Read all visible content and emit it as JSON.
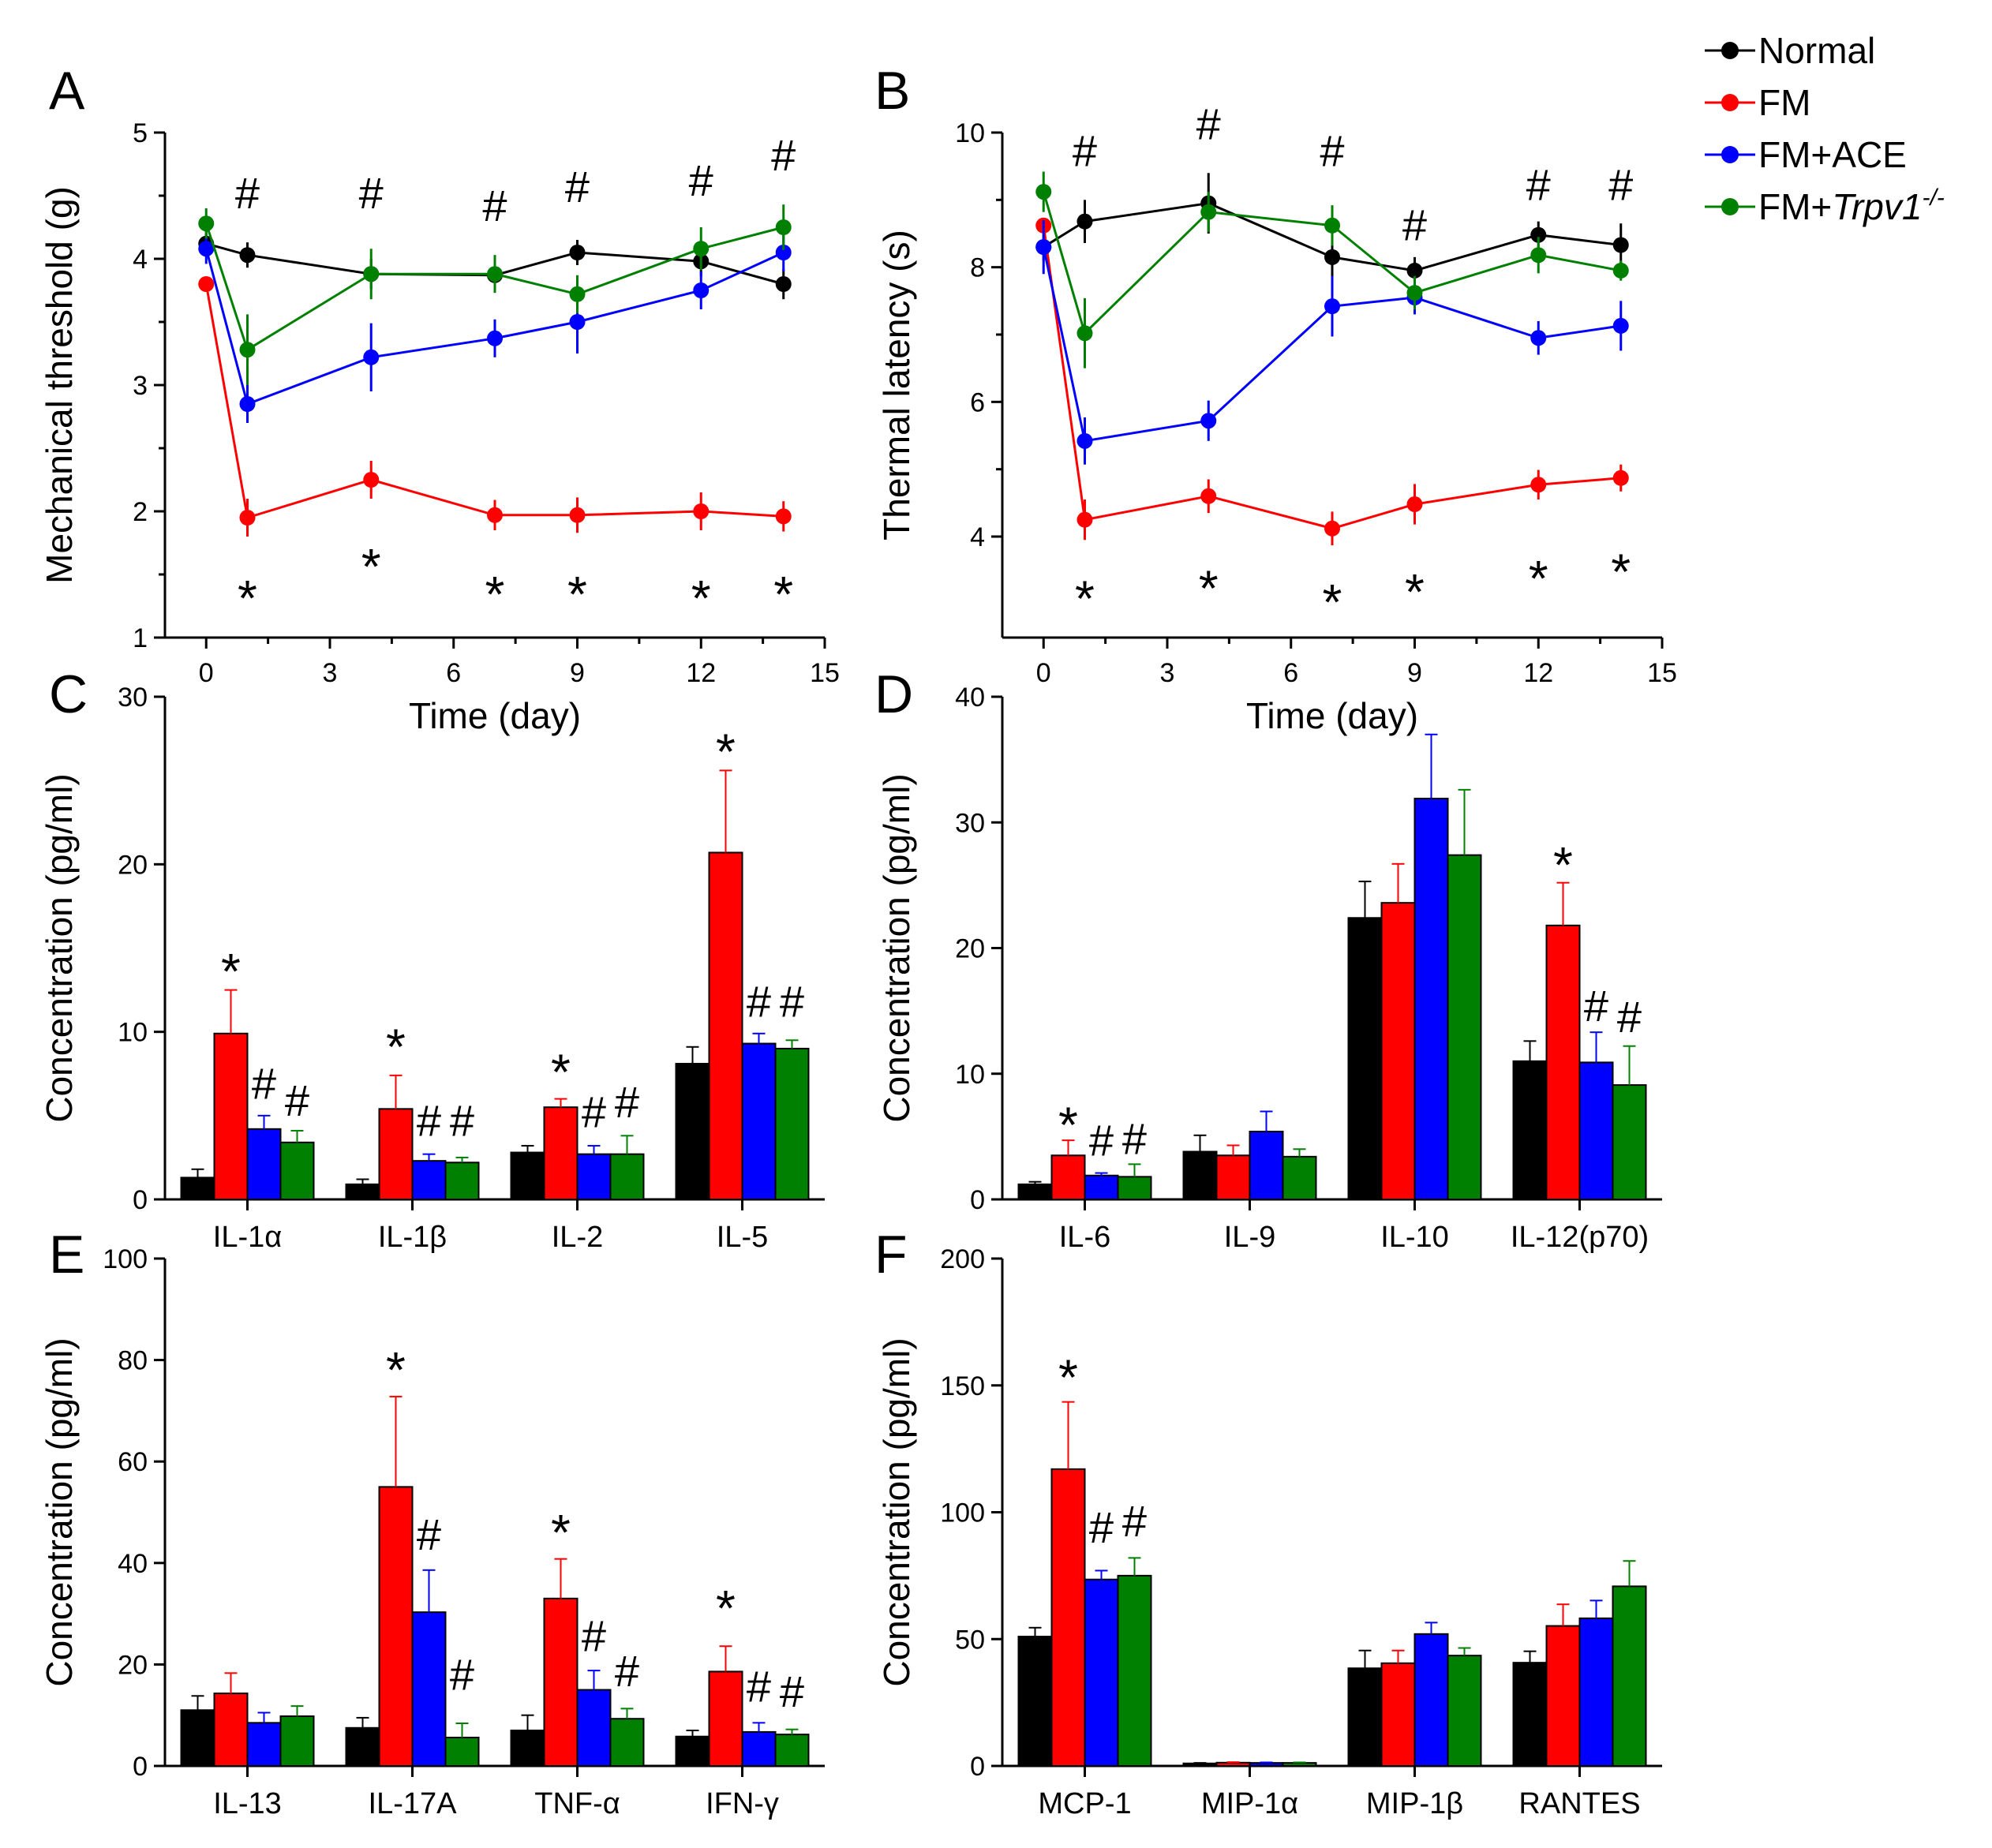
{
  "legend": {
    "items": [
      {
        "label": "Normal",
        "color": "#000000"
      },
      {
        "label": "FM",
        "color": "#ff0000"
      },
      {
        "label": "FM+ACE",
        "color": "#0000ff"
      },
      {
        "label": "FM+",
        "italic": "Trpv1",
        "sup": "-/-",
        "color": "#008000"
      }
    ]
  },
  "chart_data": [
    {
      "panel": "A",
      "type": "line",
      "xlabel": "Time (day)",
      "ylabel": "Mechanical threshold (g)",
      "xlim": [
        -1,
        15
      ],
      "ylim": [
        1,
        5
      ],
      "xticks": [
        0,
        3,
        6,
        9,
        12,
        15
      ],
      "yticks": [
        1,
        2,
        3,
        4,
        5
      ],
      "x": [
        0,
        1,
        4,
        7,
        9,
        12,
        14
      ],
      "series": [
        {
          "name": "Normal",
          "color": "#000000",
          "values": [
            4.12,
            4.03,
            3.88,
            3.87,
            4.05,
            3.98,
            3.8
          ],
          "errors": [
            0.1,
            0.1,
            0.12,
            0.1,
            0.1,
            0.12,
            0.12
          ]
        },
        {
          "name": "FM",
          "color": "#ff0000",
          "values": [
            3.8,
            1.95,
            2.25,
            1.97,
            1.97,
            2.0,
            1.96
          ],
          "errors": [
            0,
            0.15,
            0.15,
            0.12,
            0.14,
            0.15,
            0.12
          ]
        },
        {
          "name": "FM+ACE",
          "color": "#0000ff",
          "values": [
            4.08,
            2.85,
            3.22,
            3.37,
            3.5,
            3.75,
            4.05
          ],
          "errors": [
            0.12,
            0.15,
            0.27,
            0.15,
            0.25,
            0.15,
            0.15
          ]
        },
        {
          "name": "FM+Trpv1-/-",
          "color": "#008000",
          "values": [
            4.28,
            3.28,
            3.88,
            3.88,
            3.72,
            4.08,
            4.25
          ],
          "errors": [
            0.12,
            0.28,
            0.2,
            0.15,
            0.15,
            0.17,
            0.18
          ]
        }
      ],
      "annotations": [
        {
          "text": "#",
          "x": 1,
          "y": 4.4
        },
        {
          "text": "#",
          "x": 4,
          "y": 4.4
        },
        {
          "text": "#",
          "x": 7,
          "y": 4.3
        },
        {
          "text": "#",
          "x": 9,
          "y": 4.45
        },
        {
          "text": "#",
          "x": 12,
          "y": 4.5
        },
        {
          "text": "#",
          "x": 14,
          "y": 4.7
        },
        {
          "text": "*",
          "x": 1,
          "y": 1.35
        },
        {
          "text": "*",
          "x": 4,
          "y": 1.6
        },
        {
          "text": "*",
          "x": 7,
          "y": 1.38
        },
        {
          "text": "*",
          "x": 9,
          "y": 1.38
        },
        {
          "text": "*",
          "x": 12,
          "y": 1.35
        },
        {
          "text": "*",
          "x": 14,
          "y": 1.38
        }
      ]
    },
    {
      "panel": "B",
      "type": "line",
      "xlabel": "Time (day)",
      "ylabel": "Thermal latency (s)",
      "xlim": [
        -1,
        15
      ],
      "ylim": [
        2.5,
        10
      ],
      "xticks": [
        0,
        3,
        6,
        9,
        12,
        15
      ],
      "yticks": [
        4,
        6,
        8,
        10
      ],
      "x": [
        0,
        1,
        4,
        7,
        9,
        12,
        14
      ],
      "series": [
        {
          "name": "Normal",
          "color": "#000000",
          "values": [
            8.3,
            8.68,
            8.95,
            8.15,
            7.95,
            8.48,
            8.33
          ],
          "errors": [
            0.2,
            0.32,
            0.45,
            0.3,
            0.2,
            0.2,
            0.32
          ]
        },
        {
          "name": "FM",
          "color": "#ff0000",
          "values": [
            8.62,
            4.25,
            4.6,
            4.12,
            4.48,
            4.77,
            4.87
          ],
          "errors": [
            0,
            0.3,
            0.25,
            0.25,
            0.3,
            0.22,
            0.2
          ]
        },
        {
          "name": "FM+ACE",
          "color": "#0000ff",
          "values": [
            8.3,
            5.42,
            5.72,
            7.42,
            7.55,
            6.95,
            7.13
          ],
          "errors": [
            0.4,
            0.35,
            0.3,
            0.45,
            0.25,
            0.25,
            0.37
          ]
        },
        {
          "name": "FM+Trpv1-/-",
          "color": "#008000",
          "values": [
            9.12,
            7.02,
            8.82,
            8.62,
            7.62,
            8.18,
            7.95
          ],
          "errors": [
            0.3,
            0.52,
            0.3,
            0.3,
            0.25,
            0.27,
            0.15
          ]
        }
      ],
      "annotations": [
        {
          "text": "#",
          "x": 1,
          "y": 9.5
        },
        {
          "text": "#",
          "x": 4,
          "y": 9.9
        },
        {
          "text": "#",
          "x": 7,
          "y": 9.5
        },
        {
          "text": "#",
          "x": 9,
          "y": 8.4
        },
        {
          "text": "#",
          "x": 12,
          "y": 9.0
        },
        {
          "text": "#",
          "x": 14,
          "y": 9.0
        },
        {
          "text": "*",
          "x": 1,
          "y": 3.15
        },
        {
          "text": "*",
          "x": 4,
          "y": 3.3
        },
        {
          "text": "*",
          "x": 7,
          "y": 3.1
        },
        {
          "text": "*",
          "x": 9,
          "y": 3.25
        },
        {
          "text": "*",
          "x": 12,
          "y": 3.45
        },
        {
          "text": "*",
          "x": 14,
          "y": 3.55
        }
      ]
    },
    {
      "panel": "C",
      "type": "bar",
      "ylabel": "Concentration (pg/ml)",
      "ylim": [
        0,
        30
      ],
      "yticks": [
        0,
        10,
        20,
        30
      ],
      "categories": [
        "IL-1α",
        "IL-1β",
        "IL-2",
        "IL-5"
      ],
      "series": [
        {
          "name": "Normal",
          "color": "#000000",
          "values": [
            1.3,
            0.9,
            2.8,
            8.1
          ],
          "errors": [
            0.5,
            0.3,
            0.4,
            1.0
          ]
        },
        {
          "name": "FM",
          "color": "#ff0000",
          "values": [
            9.9,
            5.4,
            5.5,
            20.7
          ],
          "errors": [
            2.6,
            2.0,
            0.5,
            4.9
          ]
        },
        {
          "name": "FM+ACE",
          "color": "#0000ff",
          "values": [
            4.2,
            2.3,
            2.7,
            9.3
          ],
          "errors": [
            0.8,
            0.4,
            0.5,
            0.6
          ]
        },
        {
          "name": "FM+Trpv1-/-",
          "color": "#008000",
          "values": [
            3.4,
            2.2,
            2.7,
            9.0
          ],
          "errors": [
            0.7,
            0.3,
            1.1,
            0.5
          ]
        }
      ],
      "annotations": [
        {
          "text": "*",
          "cat": 0,
          "bar": 1,
          "y": 13.9
        },
        {
          "text": "#",
          "cat": 0,
          "bar": 2,
          "y": 6.0
        },
        {
          "text": "#",
          "cat": 0,
          "bar": 3,
          "y": 5.0
        },
        {
          "text": "*",
          "cat": 1,
          "bar": 1,
          "y": 9.4
        },
        {
          "text": "#",
          "cat": 1,
          "bar": 2,
          "y": 3.8
        },
        {
          "text": "#",
          "cat": 1,
          "bar": 3,
          "y": 3.8
        },
        {
          "text": "*",
          "cat": 2,
          "bar": 1,
          "y": 7.9
        },
        {
          "text": "#",
          "cat": 2,
          "bar": 2,
          "y": 4.3
        },
        {
          "text": "#",
          "cat": 2,
          "bar": 3,
          "y": 4.9
        },
        {
          "text": "*",
          "cat": 3,
          "bar": 1,
          "y": 27.0
        },
        {
          "text": "#",
          "cat": 3,
          "bar": 2,
          "y": 10.9
        },
        {
          "text": "#",
          "cat": 3,
          "bar": 3,
          "y": 10.9
        }
      ]
    },
    {
      "panel": "D",
      "type": "bar",
      "ylabel": "Concentration (pg/ml)",
      "ylim": [
        0,
        40
      ],
      "yticks": [
        0,
        10,
        20,
        30,
        40
      ],
      "categories": [
        "IL-6",
        "IL-9",
        "IL-10",
        "IL-12(p70)"
      ],
      "series": [
        {
          "name": "Normal",
          "color": "#000000",
          "values": [
            1.2,
            3.8,
            22.4,
            11.0
          ],
          "errors": [
            0.2,
            1.3,
            2.9,
            1.6
          ]
        },
        {
          "name": "FM",
          "color": "#ff0000",
          "values": [
            3.5,
            3.5,
            23.6,
            21.8
          ],
          "errors": [
            1.2,
            0.8,
            3.1,
            3.4
          ]
        },
        {
          "name": "FM+ACE",
          "color": "#0000ff",
          "values": [
            1.9,
            5.4,
            31.9,
            10.9
          ],
          "errors": [
            0.2,
            1.6,
            5.1,
            2.4
          ]
        },
        {
          "name": "FM+Trpv1-/-",
          "color": "#008000",
          "values": [
            1.8,
            3.4,
            27.4,
            9.1
          ],
          "errors": [
            1.0,
            0.6,
            5.2,
            3.1
          ]
        }
      ],
      "annotations": [
        {
          "text": "*",
          "cat": 0,
          "bar": 1,
          "y": 6.3
        },
        {
          "text": "#",
          "cat": 0,
          "bar": 2,
          "y": 3.5
        },
        {
          "text": "#",
          "cat": 0,
          "bar": 3,
          "y": 3.6
        },
        {
          "text": "*",
          "cat": 3,
          "bar": 1,
          "y": 27.0
        },
        {
          "text": "#",
          "cat": 3,
          "bar": 2,
          "y": 14.2
        },
        {
          "text": "#",
          "cat": 3,
          "bar": 3,
          "y": 13.3
        }
      ]
    },
    {
      "panel": "E",
      "type": "bar",
      "ylabel": "Concentration (pg/ml)",
      "ylim": [
        0,
        100
      ],
      "yticks": [
        0,
        20,
        40,
        60,
        80,
        100
      ],
      "categories": [
        "IL-13",
        "IL-17A",
        "TNF-α",
        "IFN-γ"
      ],
      "series": [
        {
          "name": "Normal",
          "color": "#000000",
          "values": [
            11.0,
            7.5,
            7.0,
            5.8
          ],
          "errors": [
            2.8,
            2.0,
            3.0,
            1.2
          ]
        },
        {
          "name": "FM",
          "color": "#ff0000",
          "values": [
            14.3,
            55.0,
            33.0,
            18.6
          ],
          "errors": [
            4.0,
            17.8,
            7.8,
            5.0
          ]
        },
        {
          "name": "FM+ACE",
          "color": "#0000ff",
          "values": [
            8.5,
            30.3,
            15.0,
            6.7
          ],
          "errors": [
            2.0,
            8.3,
            3.8,
            1.8
          ]
        },
        {
          "name": "FM+Trpv1-/-",
          "color": "#008000",
          "values": [
            9.8,
            5.6,
            9.3,
            6.2
          ],
          "errors": [
            2.0,
            2.8,
            2.0,
            1.0
          ]
        }
      ],
      "annotations": [
        {
          "text": "*",
          "cat": 1,
          "bar": 1,
          "y": 79.0
        },
        {
          "text": "#",
          "cat": 1,
          "bar": 2,
          "y": 42.6
        },
        {
          "text": "#",
          "cat": 1,
          "bar": 3,
          "y": 15.0
        },
        {
          "text": "*",
          "cat": 2,
          "bar": 1,
          "y": 47.0
        },
        {
          "text": "#",
          "cat": 2,
          "bar": 2,
          "y": 22.6
        },
        {
          "text": "#",
          "cat": 2,
          "bar": 3,
          "y": 15.7
        },
        {
          "text": "*",
          "cat": 3,
          "bar": 1,
          "y": 32.0
        },
        {
          "text": "#",
          "cat": 3,
          "bar": 2,
          "y": 12.7
        },
        {
          "text": "#",
          "cat": 3,
          "bar": 3,
          "y": 11.7
        }
      ]
    },
    {
      "panel": "F",
      "type": "bar",
      "ylabel": "Concentration (pg/ml)",
      "ylim": [
        0,
        200
      ],
      "yticks": [
        0,
        50,
        100,
        150,
        200
      ],
      "categories": [
        "MCP-1",
        "MIP-1α",
        "MIP-1β",
        "RANTES"
      ],
      "series": [
        {
          "name": "Normal",
          "color": "#000000",
          "values": [
            51.0,
            1.0,
            38.5,
            40.7
          ],
          "errors": [
            3.5,
            0.2,
            7.0,
            4.5
          ]
        },
        {
          "name": "FM",
          "color": "#ff0000",
          "values": [
            117.0,
            1.3,
            40.5,
            55.2
          ],
          "errors": [
            26.5,
            0.2,
            5.0,
            8.5
          ]
        },
        {
          "name": "FM+ACE",
          "color": "#0000ff",
          "values": [
            73.5,
            1.2,
            52.0,
            58.2
          ],
          "errors": [
            3.5,
            0.2,
            4.5,
            7.0
          ]
        },
        {
          "name": "FM+Trpv1-/-",
          "color": "#008000",
          "values": [
            75.0,
            1.2,
            43.5,
            70.8
          ],
          "errors": [
            7.0,
            0.2,
            3.0,
            10.0
          ]
        }
      ],
      "annotations": [
        {
          "text": "*",
          "cat": 0,
          "bar": 1,
          "y": 155.0
        },
        {
          "text": "#",
          "cat": 0,
          "bar": 2,
          "y": 88.0
        },
        {
          "text": "#",
          "cat": 0,
          "bar": 3,
          "y": 90.5
        }
      ]
    }
  ]
}
